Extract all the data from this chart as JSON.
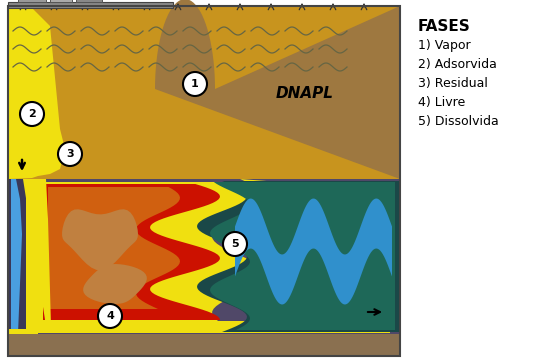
{
  "fases_title": "FASES",
  "fases_items": [
    "1) Vapor",
    "2) Adsorvida",
    "3) Residual",
    "4) Livre",
    "5) Dissolvida"
  ],
  "dnapl_label": "DNAPL",
  "bg_color": "#ffffff",
  "upper_soil": "#c8941e",
  "dnapl_brown": "#9e7840",
  "sat_zone_bg": "#504868",
  "bottom_strip": "#8a7050",
  "red_color": "#cc1100",
  "orange_color": "#d06010",
  "tan_color": "#c08040",
  "yellow_color": "#f0e010",
  "blue_color": "#3090cc",
  "teal_color": "#1e6858",
  "dark_teal_color": "#1a4848",
  "left_blue": "#3888cc",
  "box_color": "#444444"
}
